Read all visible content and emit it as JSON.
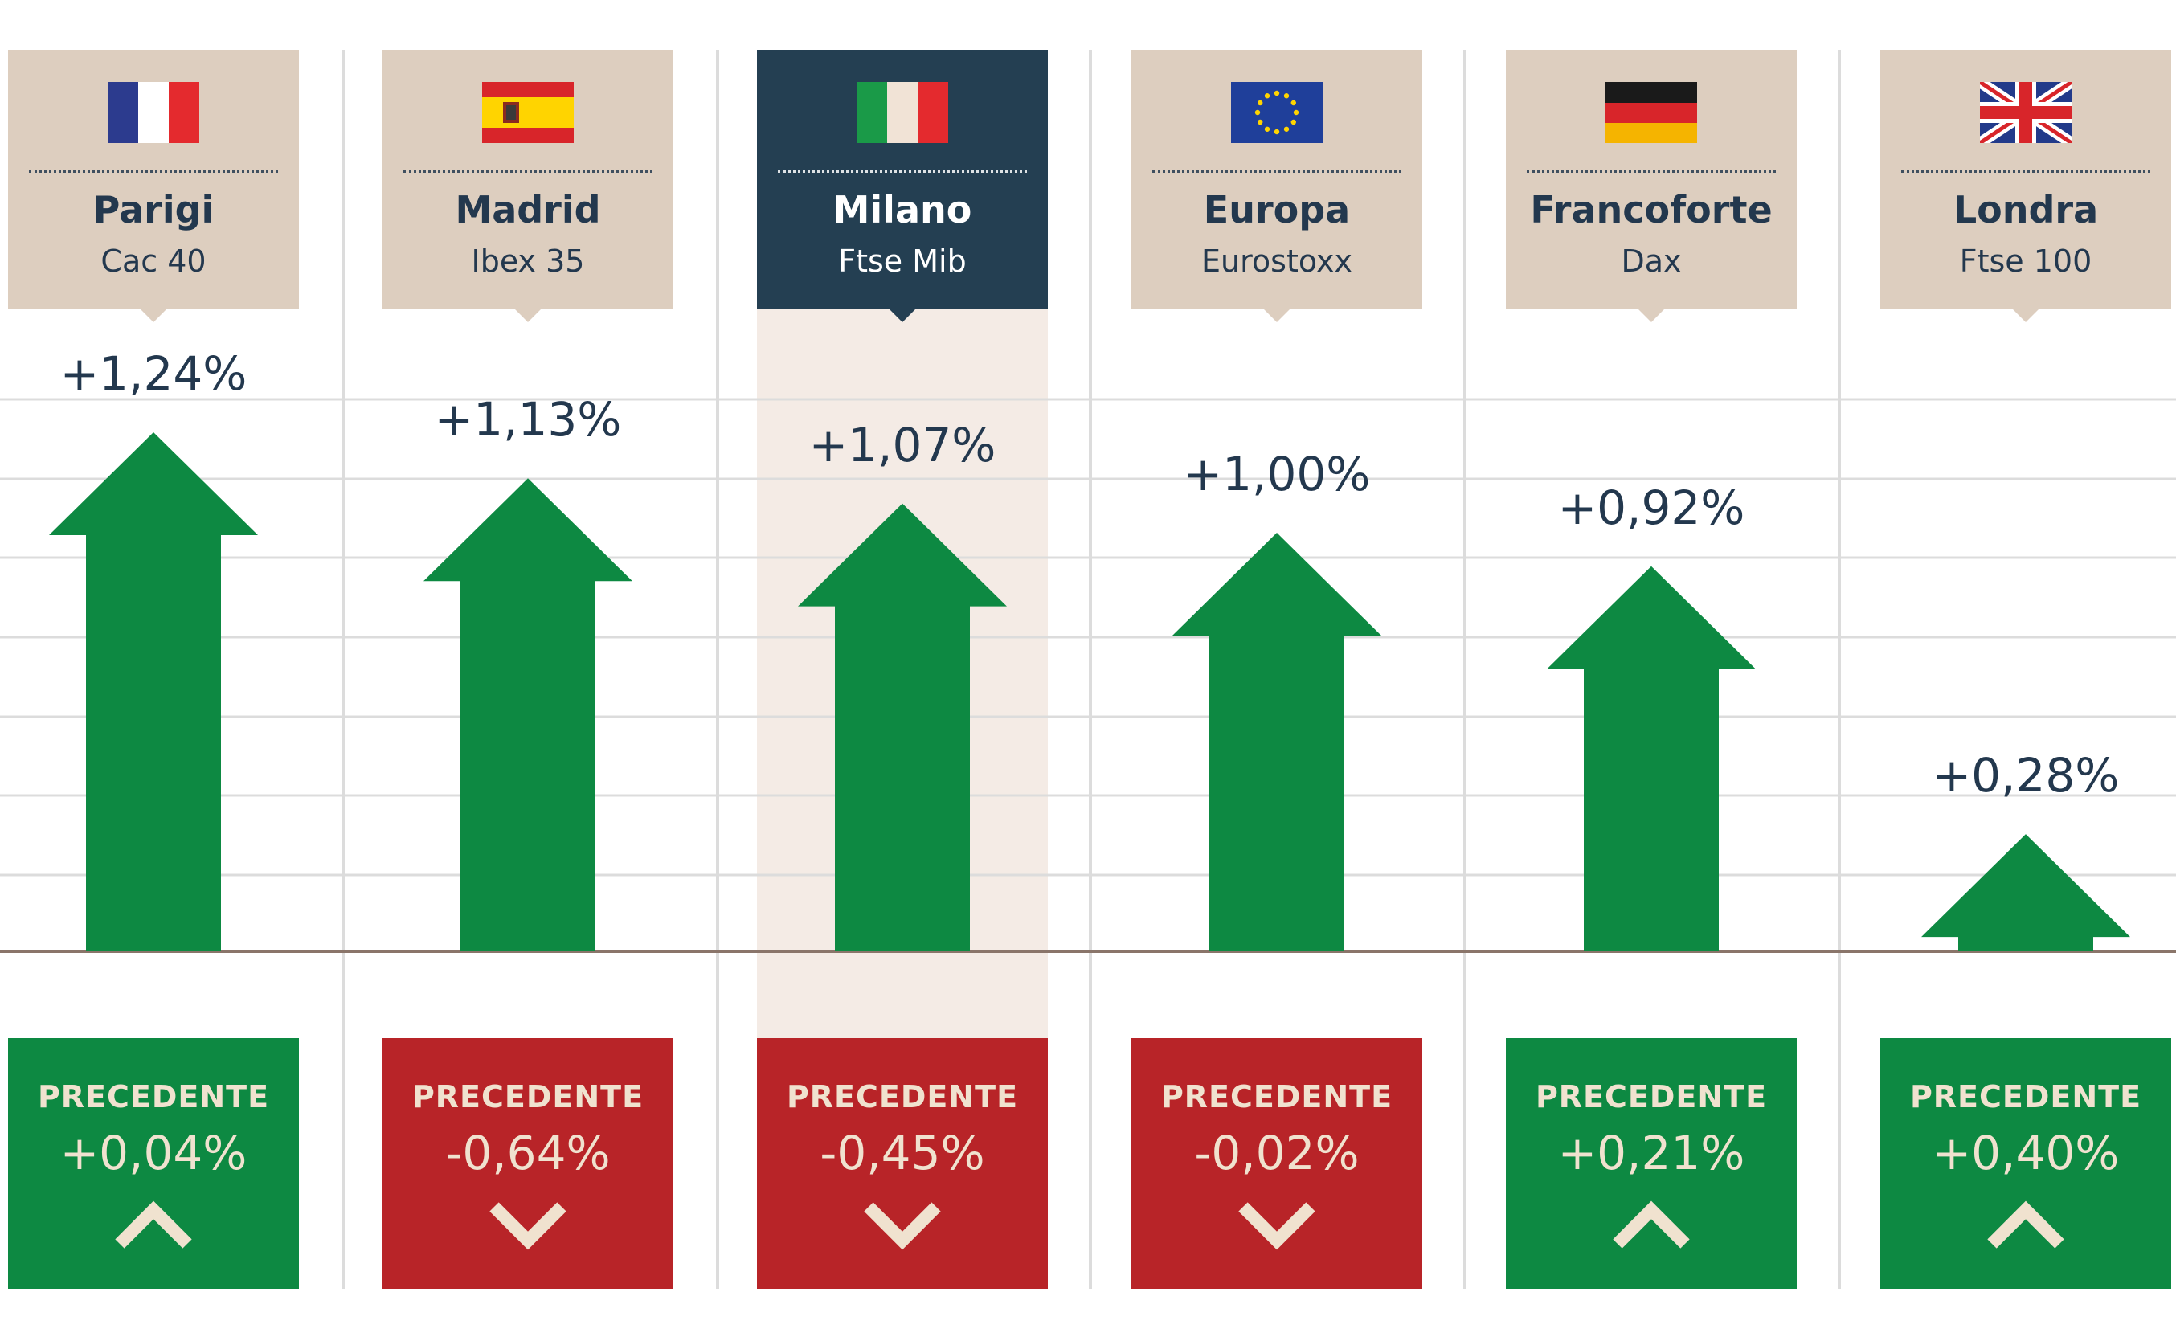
{
  "colors": {
    "up_arrow": "#0d8942",
    "header_bg": "#ddcebf",
    "header_highlight_bg": "#243f52",
    "highlight_column_bg": "#f4ebe5",
    "prev_positive_bg": "#0d8942",
    "prev_negative_bg": "#b82428",
    "text_dark": "#23384e",
    "chevron": "#f0e2cf"
  },
  "chart_data": {
    "type": "bar",
    "unit": "%",
    "ylim": [
      0,
      1.24
    ],
    "grid": true,
    "highlight_index": 2,
    "previous_label": "PRECEDENTE",
    "markets": [
      {
        "city": "Parigi",
        "index": "Cac 40",
        "flag": "france-flag-icon",
        "value": 1.24,
        "value_label": "+1,24%",
        "previous": 0.04,
        "previous_label": "+0,04%"
      },
      {
        "city": "Madrid",
        "index": "Ibex 35",
        "flag": "spain-flag-icon",
        "value": 1.13,
        "value_label": "+1,13%",
        "previous": -0.64,
        "previous_label": "-0,64%"
      },
      {
        "city": "Milano",
        "index": "Ftse Mib",
        "flag": "italy-flag-icon",
        "value": 1.07,
        "value_label": "+1,07%",
        "previous": -0.45,
        "previous_label": "-0,45%"
      },
      {
        "city": "Europa",
        "index": "Eurostoxx",
        "flag": "eu-flag-icon",
        "value": 1.0,
        "value_label": "+1,00%",
        "previous": -0.02,
        "previous_label": "-0,02%"
      },
      {
        "city": "Francoforte",
        "index": "Dax",
        "flag": "germany-flag-icon",
        "value": 0.92,
        "value_label": "+0,92%",
        "previous": 0.21,
        "previous_label": "+0,21%"
      },
      {
        "city": "Londra",
        "index": "Ftse 100",
        "flag": "uk-flag-icon",
        "value": 0.28,
        "value_label": "+0,28%",
        "previous": 0.4,
        "previous_label": "+0,40%"
      }
    ]
  }
}
